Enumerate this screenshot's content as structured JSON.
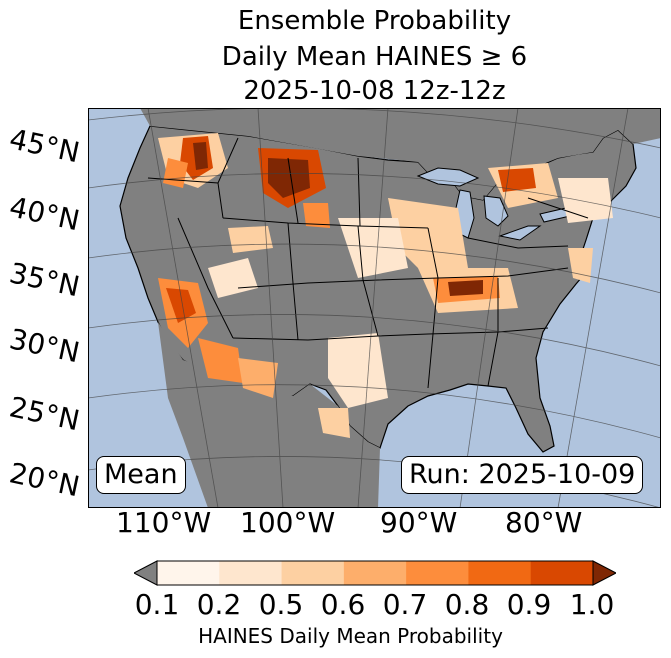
{
  "title": {
    "line1": "Ensemble Probability",
    "line2": "Daily Mean HAINES ≥ 6",
    "line3": "2025-10-08 12z-12z"
  },
  "map": {
    "lat_labels": [
      "45°N",
      "40°N",
      "35°N",
      "30°N",
      "25°N",
      "20°N"
    ],
    "lon_labels": [
      "110°W",
      "100°W",
      "90°W",
      "80°W"
    ],
    "mean_label": "Mean",
    "run_label": "Run: 2025-10-09",
    "colors": {
      "ocean": "#b0c4de",
      "land_no_data": "#808080",
      "water_lakes": "#b0c4de"
    },
    "regions": [
      {
        "name": "Pacific Northwest / Idaho",
        "prob_max": 1.0
      },
      {
        "name": "Montana / Wyoming",
        "prob_max": 1.0
      },
      {
        "name": "Southern California / Arizona",
        "prob_max": 0.9
      },
      {
        "name": "Texas",
        "prob_max": 0.5
      },
      {
        "name": "Ohio Valley / Kentucky",
        "prob_max": 1.0
      },
      {
        "name": "Great Lakes / Ontario",
        "prob_max": 0.9
      },
      {
        "name": "Central Plains",
        "prob_max": 0.6
      }
    ]
  },
  "colorbar": {
    "ticks": [
      "0.1",
      "0.2",
      "0.5",
      "0.6",
      "0.7",
      "0.8",
      "0.9",
      "1.0"
    ],
    "colors": [
      "#fff5eb",
      "#fee6ce",
      "#fdd0a2",
      "#fdae6b",
      "#fd8d3c",
      "#f16913",
      "#d94801",
      "#a63603"
    ],
    "under_color": "#808080",
    "over_color": "#7f2704",
    "label": "HAINES Daily Mean Probability"
  }
}
